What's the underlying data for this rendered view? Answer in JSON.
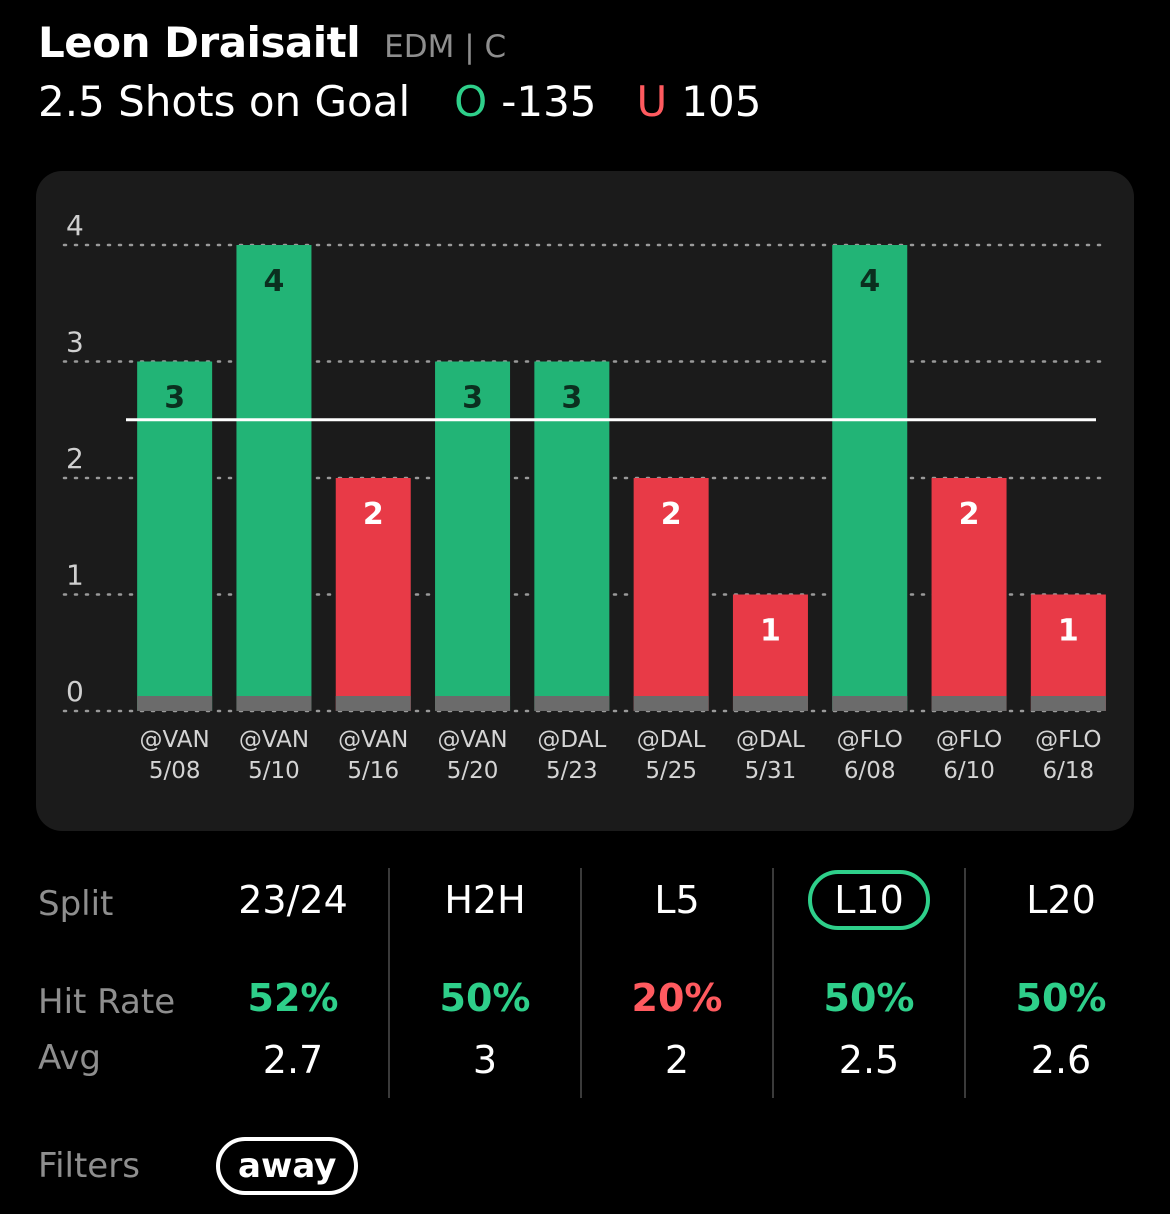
{
  "player": {
    "name": "Leon Draisaitl",
    "team_pos": "EDM | C"
  },
  "prop": {
    "label": "2.5 Shots on Goal",
    "over_letter": "O",
    "over_odds": "-135",
    "under_letter": "U",
    "under_odds": "105"
  },
  "colors": {
    "hit": "#22b476",
    "miss": "#e83a47",
    "over": "#2ecf8a",
    "under": "#ff5a5f",
    "base": "#6b6b6b",
    "grid": "#9a9a9a"
  },
  "chart_data": {
    "type": "bar",
    "line": 2.5,
    "ylim": [
      0,
      4
    ],
    "yticks": [
      "0",
      "1",
      "2",
      "3",
      "4"
    ],
    "categories": [
      "@VAN 5/08",
      "@VAN 5/10",
      "@VAN 5/16",
      "@VAN 5/20",
      "@DAL 5/23",
      "@DAL 5/25",
      "@DAL 5/31",
      "@FLO 6/08",
      "@FLO 6/10",
      "@FLO 6/18"
    ],
    "opponents": [
      "@VAN",
      "@VAN",
      "@VAN",
      "@VAN",
      "@DAL",
      "@DAL",
      "@DAL",
      "@FLO",
      "@FLO",
      "@FLO"
    ],
    "dates": [
      "5/08",
      "5/10",
      "5/16",
      "5/20",
      "5/23",
      "5/25",
      "5/31",
      "6/08",
      "6/10",
      "6/18"
    ],
    "values": [
      3,
      4,
      2,
      3,
      3,
      2,
      1,
      4,
      2,
      1
    ],
    "grid": true
  },
  "stats": {
    "row_labels": {
      "split": "Split",
      "hit_rate": "Hit Rate",
      "avg": "Avg"
    },
    "columns": [
      {
        "split": "23/24",
        "hit_rate": "52%",
        "avg": "2.7",
        "hit_status": "over",
        "selected": false
      },
      {
        "split": "H2H",
        "hit_rate": "50%",
        "avg": "3",
        "hit_status": "over",
        "selected": false
      },
      {
        "split": "L5",
        "hit_rate": "20%",
        "avg": "2",
        "hit_status": "under",
        "selected": false
      },
      {
        "split": "L10",
        "hit_rate": "50%",
        "avg": "2.5",
        "hit_status": "over",
        "selected": true
      },
      {
        "split": "L20",
        "hit_rate": "50%",
        "avg": "2.6",
        "hit_status": "over",
        "selected": false
      }
    ]
  },
  "filters": {
    "label": "Filters",
    "active": "away"
  }
}
